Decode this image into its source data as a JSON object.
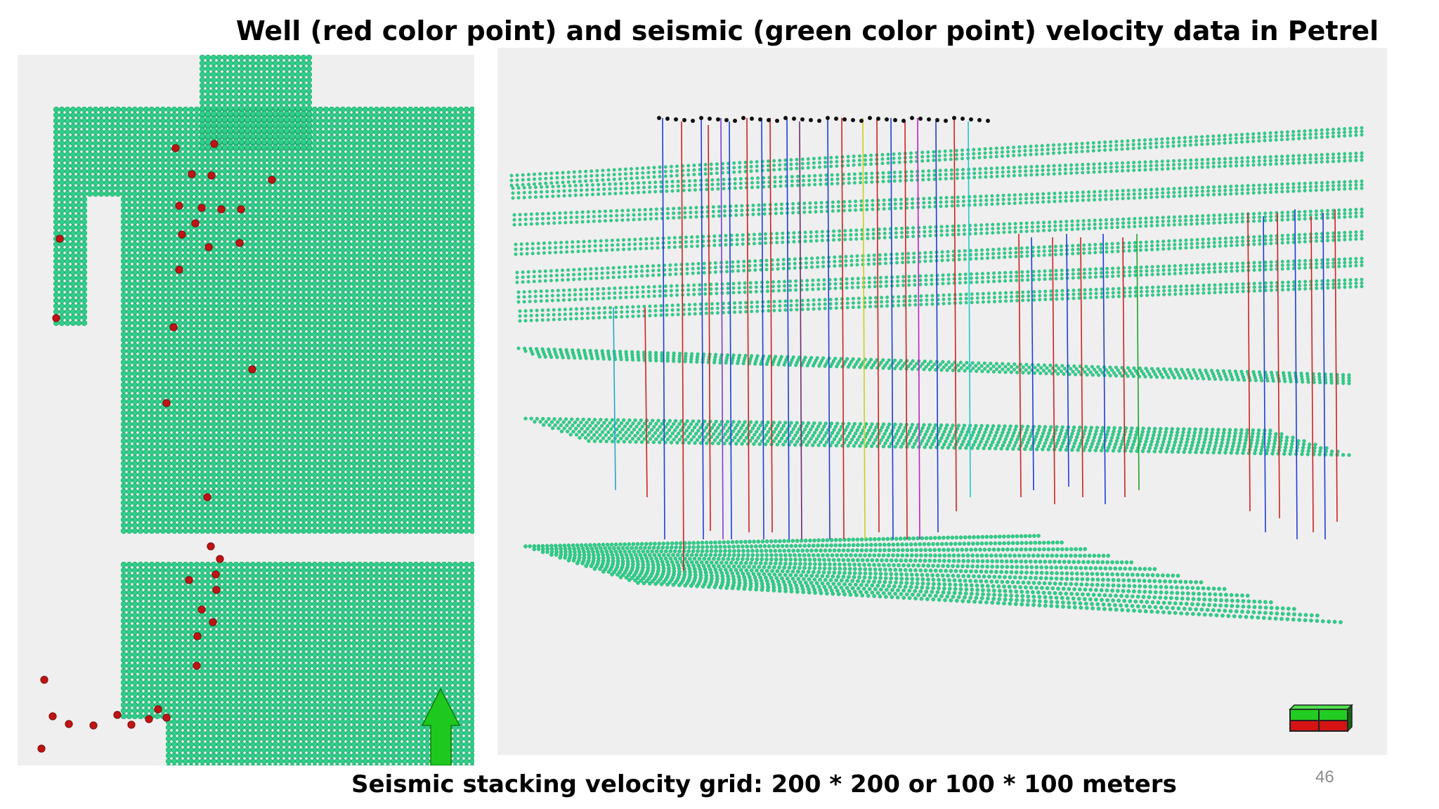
{
  "slide": {
    "title": "Well (red color point) and seismic (green color point) velocity data in Petrel",
    "caption": "Seismic stacking velocity grid: 200 * 200 or 100 * 100 meters",
    "page_number": "46"
  },
  "colors": {
    "seismic_point": "#2ecf8a",
    "well_point": "#c01414",
    "north_arrow": "#1ec81e",
    "panel_background": "#efefef"
  },
  "icons": {
    "north_arrow": "north-arrow-icon",
    "orientation_cube": "orientation-cube-icon"
  }
}
